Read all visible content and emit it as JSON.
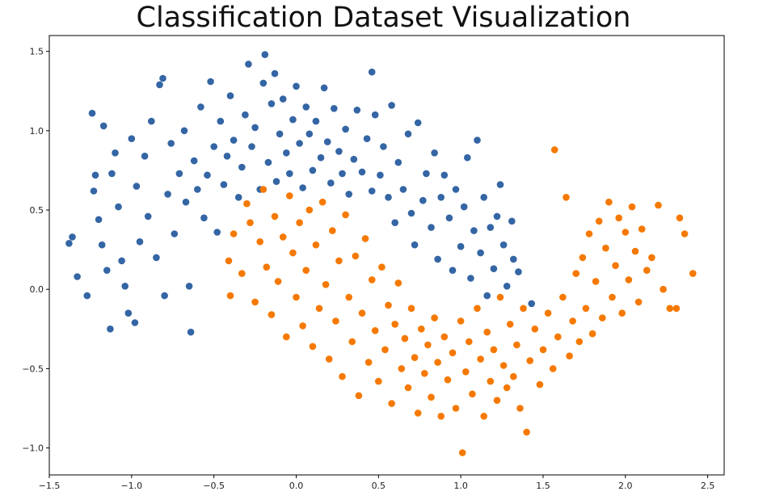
{
  "chart_data": {
    "type": "scatter",
    "title": "Classification Dataset Visualization",
    "xlabel": "",
    "ylabel": "",
    "xlim": [
      -1.5,
      2.6
    ],
    "ylim": [
      -1.17,
      1.6
    ],
    "xticks": [
      -1.5,
      -1.0,
      -0.5,
      0.0,
      0.5,
      1.0,
      1.5,
      2.0,
      2.5
    ],
    "xtick_labels": [
      "−1.5",
      "−1.0",
      "−0.5",
      "0.0",
      "0.5",
      "1.0",
      "1.5",
      "2.0",
      "2.5"
    ],
    "yticks": [
      -1.0,
      -0.5,
      0.0,
      0.5,
      1.0,
      1.5
    ],
    "ytick_labels": [
      "−1.0",
      "−0.5",
      "0.0",
      "0.5",
      "1.0",
      "1.5"
    ],
    "grid": false,
    "legend": "none",
    "series": [
      {
        "color": "#3465a4",
        "points": [
          [
            -1.38,
            0.29
          ],
          [
            -1.36,
            0.33
          ],
          [
            -1.33,
            0.08
          ],
          [
            -1.27,
            -0.04
          ],
          [
            -1.24,
            1.11
          ],
          [
            -1.23,
            0.62
          ],
          [
            -1.22,
            0.72
          ],
          [
            -1.2,
            0.44
          ],
          [
            -1.18,
            0.28
          ],
          [
            -1.17,
            1.03
          ],
          [
            -1.15,
            0.12
          ],
          [
            -1.13,
            -0.25
          ],
          [
            -1.12,
            0.73
          ],
          [
            -1.1,
            0.86
          ],
          [
            -1.08,
            0.52
          ],
          [
            -1.06,
            0.18
          ],
          [
            -1.04,
            0.02
          ],
          [
            -1.02,
            -0.15
          ],
          [
            -1.0,
            0.95
          ],
          [
            -0.98,
            -0.21
          ],
          [
            -0.97,
            0.65
          ],
          [
            -0.95,
            0.3
          ],
          [
            -0.92,
            0.84
          ],
          [
            -0.9,
            0.46
          ],
          [
            -0.88,
            1.06
          ],
          [
            -0.85,
            0.2
          ],
          [
            -0.83,
            1.29
          ],
          [
            -0.81,
            1.33
          ],
          [
            -0.8,
            -0.04
          ],
          [
            -0.78,
            0.6
          ],
          [
            -0.76,
            0.92
          ],
          [
            -0.74,
            0.35
          ],
          [
            -0.71,
            0.73
          ],
          [
            -0.68,
            1.0
          ],
          [
            -0.67,
            0.55
          ],
          [
            -0.65,
            0.02
          ],
          [
            -0.64,
            -0.27
          ],
          [
            -0.62,
            0.81
          ],
          [
            -0.6,
            0.63
          ],
          [
            -0.58,
            1.15
          ],
          [
            -0.56,
            0.45
          ],
          [
            -0.54,
            0.72
          ],
          [
            -0.52,
            1.31
          ],
          [
            -0.5,
            0.9
          ],
          [
            -0.48,
            0.36
          ],
          [
            -0.46,
            1.06
          ],
          [
            -0.44,
            0.66
          ],
          [
            -0.42,
            0.84
          ],
          [
            -0.4,
            1.22
          ],
          [
            -0.38,
            0.94
          ],
          [
            -0.35,
            0.58
          ],
          [
            -0.33,
            0.77
          ],
          [
            -0.31,
            1.1
          ],
          [
            -0.29,
            1.42
          ],
          [
            -0.27,
            0.9
          ],
          [
            -0.25,
            1.02
          ],
          [
            -0.22,
            0.63
          ],
          [
            -0.2,
            1.3
          ],
          [
            -0.19,
            1.48
          ],
          [
            -0.17,
            0.8
          ],
          [
            -0.15,
            1.17
          ],
          [
            -0.13,
            1.36
          ],
          [
            -0.12,
            0.68
          ],
          [
            -0.1,
            0.98
          ],
          [
            -0.08,
            1.2
          ],
          [
            -0.06,
            0.86
          ],
          [
            -0.04,
            0.73
          ],
          [
            -0.02,
            1.07
          ],
          [
            0.0,
            1.28
          ],
          [
            0.02,
            0.92
          ],
          [
            0.04,
            0.64
          ],
          [
            0.06,
            1.15
          ],
          [
            0.08,
            0.98
          ],
          [
            0.1,
            0.75
          ],
          [
            0.12,
            1.06
          ],
          [
            0.15,
            0.83
          ],
          [
            0.17,
            1.27
          ],
          [
            0.19,
            0.93
          ],
          [
            0.21,
            0.67
          ],
          [
            0.23,
            1.14
          ],
          [
            0.26,
            0.87
          ],
          [
            0.28,
            0.73
          ],
          [
            0.3,
            1.01
          ],
          [
            0.32,
            0.6
          ],
          [
            0.35,
            0.82
          ],
          [
            0.37,
            1.13
          ],
          [
            0.4,
            0.74
          ],
          [
            0.43,
            0.95
          ],
          [
            0.46,
            0.62
          ],
          [
            0.46,
            1.37
          ],
          [
            0.48,
            1.1
          ],
          [
            0.51,
            0.72
          ],
          [
            0.53,
            0.9
          ],
          [
            0.56,
            0.58
          ],
          [
            0.58,
            1.16
          ],
          [
            0.6,
            0.42
          ],
          [
            0.62,
            0.8
          ],
          [
            0.65,
            0.63
          ],
          [
            0.68,
            0.98
          ],
          [
            0.7,
            0.48
          ],
          [
            0.72,
            0.28
          ],
          [
            0.74,
            1.05
          ],
          [
            0.77,
            0.56
          ],
          [
            0.79,
            0.73
          ],
          [
            0.82,
            0.39
          ],
          [
            0.84,
            0.86
          ],
          [
            0.86,
            0.19
          ],
          [
            0.88,
            0.58
          ],
          [
            0.9,
            0.72
          ],
          [
            0.93,
            0.45
          ],
          [
            0.95,
            0.12
          ],
          [
            0.97,
            0.63
          ],
          [
            1.0,
            0.27
          ],
          [
            1.02,
            0.52
          ],
          [
            1.04,
            0.83
          ],
          [
            1.06,
            0.07
          ],
          [
            1.08,
            0.37
          ],
          [
            1.1,
            0.94
          ],
          [
            1.12,
            0.23
          ],
          [
            1.14,
            0.58
          ],
          [
            1.16,
            -0.04
          ],
          [
            1.18,
            0.39
          ],
          [
            1.2,
            0.13
          ],
          [
            1.22,
            0.46
          ],
          [
            1.24,
            0.66
          ],
          [
            1.26,
            0.28
          ],
          [
            1.28,
            0.02
          ],
          [
            1.31,
            0.43
          ],
          [
            1.32,
            0.19
          ],
          [
            1.35,
            0.11
          ],
          [
            1.43,
            -0.09
          ]
        ]
      },
      {
        "color": "#f57900",
        "points": [
          [
            -0.41,
            0.18
          ],
          [
            -0.4,
            -0.04
          ],
          [
            -0.38,
            0.35
          ],
          [
            -0.33,
            0.1
          ],
          [
            -0.3,
            0.54
          ],
          [
            -0.28,
            0.42
          ],
          [
            -0.25,
            -0.08
          ],
          [
            -0.22,
            0.3
          ],
          [
            -0.2,
            0.63
          ],
          [
            -0.18,
            0.14
          ],
          [
            -0.15,
            -0.16
          ],
          [
            -0.13,
            0.46
          ],
          [
            -0.11,
            0.05
          ],
          [
            -0.08,
            0.33
          ],
          [
            -0.06,
            -0.3
          ],
          [
            -0.04,
            0.59
          ],
          [
            -0.02,
            0.23
          ],
          [
            0.0,
            -0.05
          ],
          [
            0.02,
            0.42
          ],
          [
            0.04,
            -0.23
          ],
          [
            0.06,
            0.12
          ],
          [
            0.08,
            0.5
          ],
          [
            0.1,
            -0.36
          ],
          [
            0.12,
            0.28
          ],
          [
            0.14,
            -0.12
          ],
          [
            0.16,
            0.55
          ],
          [
            0.18,
            0.03
          ],
          [
            0.2,
            -0.44
          ],
          [
            0.22,
            0.37
          ],
          [
            0.24,
            -0.2
          ],
          [
            0.26,
            0.18
          ],
          [
            0.28,
            -0.55
          ],
          [
            0.3,
            0.47
          ],
          [
            0.32,
            -0.05
          ],
          [
            0.34,
            -0.33
          ],
          [
            0.36,
            0.21
          ],
          [
            0.38,
            -0.67
          ],
          [
            0.4,
            -0.15
          ],
          [
            0.42,
            0.32
          ],
          [
            0.44,
            -0.46
          ],
          [
            0.46,
            0.06
          ],
          [
            0.48,
            -0.26
          ],
          [
            0.5,
            -0.58
          ],
          [
            0.52,
            0.14
          ],
          [
            0.54,
            -0.38
          ],
          [
            0.56,
            -0.1
          ],
          [
            0.58,
            -0.72
          ],
          [
            0.6,
            -0.22
          ],
          [
            0.62,
            0.04
          ],
          [
            0.64,
            -0.5
          ],
          [
            0.66,
            -0.31
          ],
          [
            0.68,
            -0.62
          ],
          [
            0.7,
            -0.12
          ],
          [
            0.72,
            -0.43
          ],
          [
            0.74,
            -0.78
          ],
          [
            0.76,
            -0.25
          ],
          [
            0.78,
            -0.53
          ],
          [
            0.8,
            -0.35
          ],
          [
            0.82,
            -0.68
          ],
          [
            0.84,
            -0.18
          ],
          [
            0.86,
            -0.46
          ],
          [
            0.88,
            -0.8
          ],
          [
            0.9,
            -0.3
          ],
          [
            0.92,
            -0.57
          ],
          [
            0.95,
            -0.4
          ],
          [
            0.97,
            -0.75
          ],
          [
            1.0,
            -0.2
          ],
          [
            1.01,
            -1.03
          ],
          [
            1.03,
            -0.52
          ],
          [
            1.05,
            -0.33
          ],
          [
            1.07,
            -0.66
          ],
          [
            1.1,
            -0.12
          ],
          [
            1.12,
            -0.44
          ],
          [
            1.14,
            -0.8
          ],
          [
            1.16,
            -0.27
          ],
          [
            1.18,
            -0.58
          ],
          [
            1.2,
            -0.38
          ],
          [
            1.22,
            -0.7
          ],
          [
            1.24,
            -0.05
          ],
          [
            1.26,
            -0.48
          ],
          [
            1.28,
            -0.62
          ],
          [
            1.3,
            -0.22
          ],
          [
            1.32,
            -0.55
          ],
          [
            1.34,
            -0.35
          ],
          [
            1.36,
            -0.75
          ],
          [
            1.38,
            -0.12
          ],
          [
            1.4,
            -0.9
          ],
          [
            1.42,
            -0.45
          ],
          [
            1.45,
            -0.25
          ],
          [
            1.48,
            -0.6
          ],
          [
            1.5,
            -0.38
          ],
          [
            1.53,
            -0.15
          ],
          [
            1.56,
            -0.5
          ],
          [
            1.57,
            0.88
          ],
          [
            1.59,
            -0.3
          ],
          [
            1.62,
            -0.05
          ],
          [
            1.64,
            0.58
          ],
          [
            1.66,
            -0.42
          ],
          [
            1.68,
            -0.2
          ],
          [
            1.7,
            0.1
          ],
          [
            1.72,
            -0.33
          ],
          [
            1.74,
            0.2
          ],
          [
            1.76,
            -0.12
          ],
          [
            1.78,
            0.35
          ],
          [
            1.8,
            -0.28
          ],
          [
            1.82,
            0.05
          ],
          [
            1.84,
            0.43
          ],
          [
            1.86,
            -0.18
          ],
          [
            1.88,
            0.26
          ],
          [
            1.9,
            0.55
          ],
          [
            1.92,
            -0.05
          ],
          [
            1.94,
            0.15
          ],
          [
            1.96,
            0.45
          ],
          [
            1.98,
            -0.15
          ],
          [
            2.0,
            0.36
          ],
          [
            2.02,
            0.06
          ],
          [
            2.04,
            0.52
          ],
          [
            2.06,
            0.24
          ],
          [
            2.08,
            -0.08
          ],
          [
            2.1,
            0.38
          ],
          [
            2.13,
            0.12
          ],
          [
            2.16,
            0.2
          ],
          [
            2.2,
            0.53
          ],
          [
            2.23,
            0.0
          ],
          [
            2.27,
            -0.12
          ],
          [
            2.31,
            -0.12
          ],
          [
            2.33,
            0.45
          ],
          [
            2.36,
            0.35
          ],
          [
            2.41,
            0.1
          ]
        ]
      }
    ]
  }
}
